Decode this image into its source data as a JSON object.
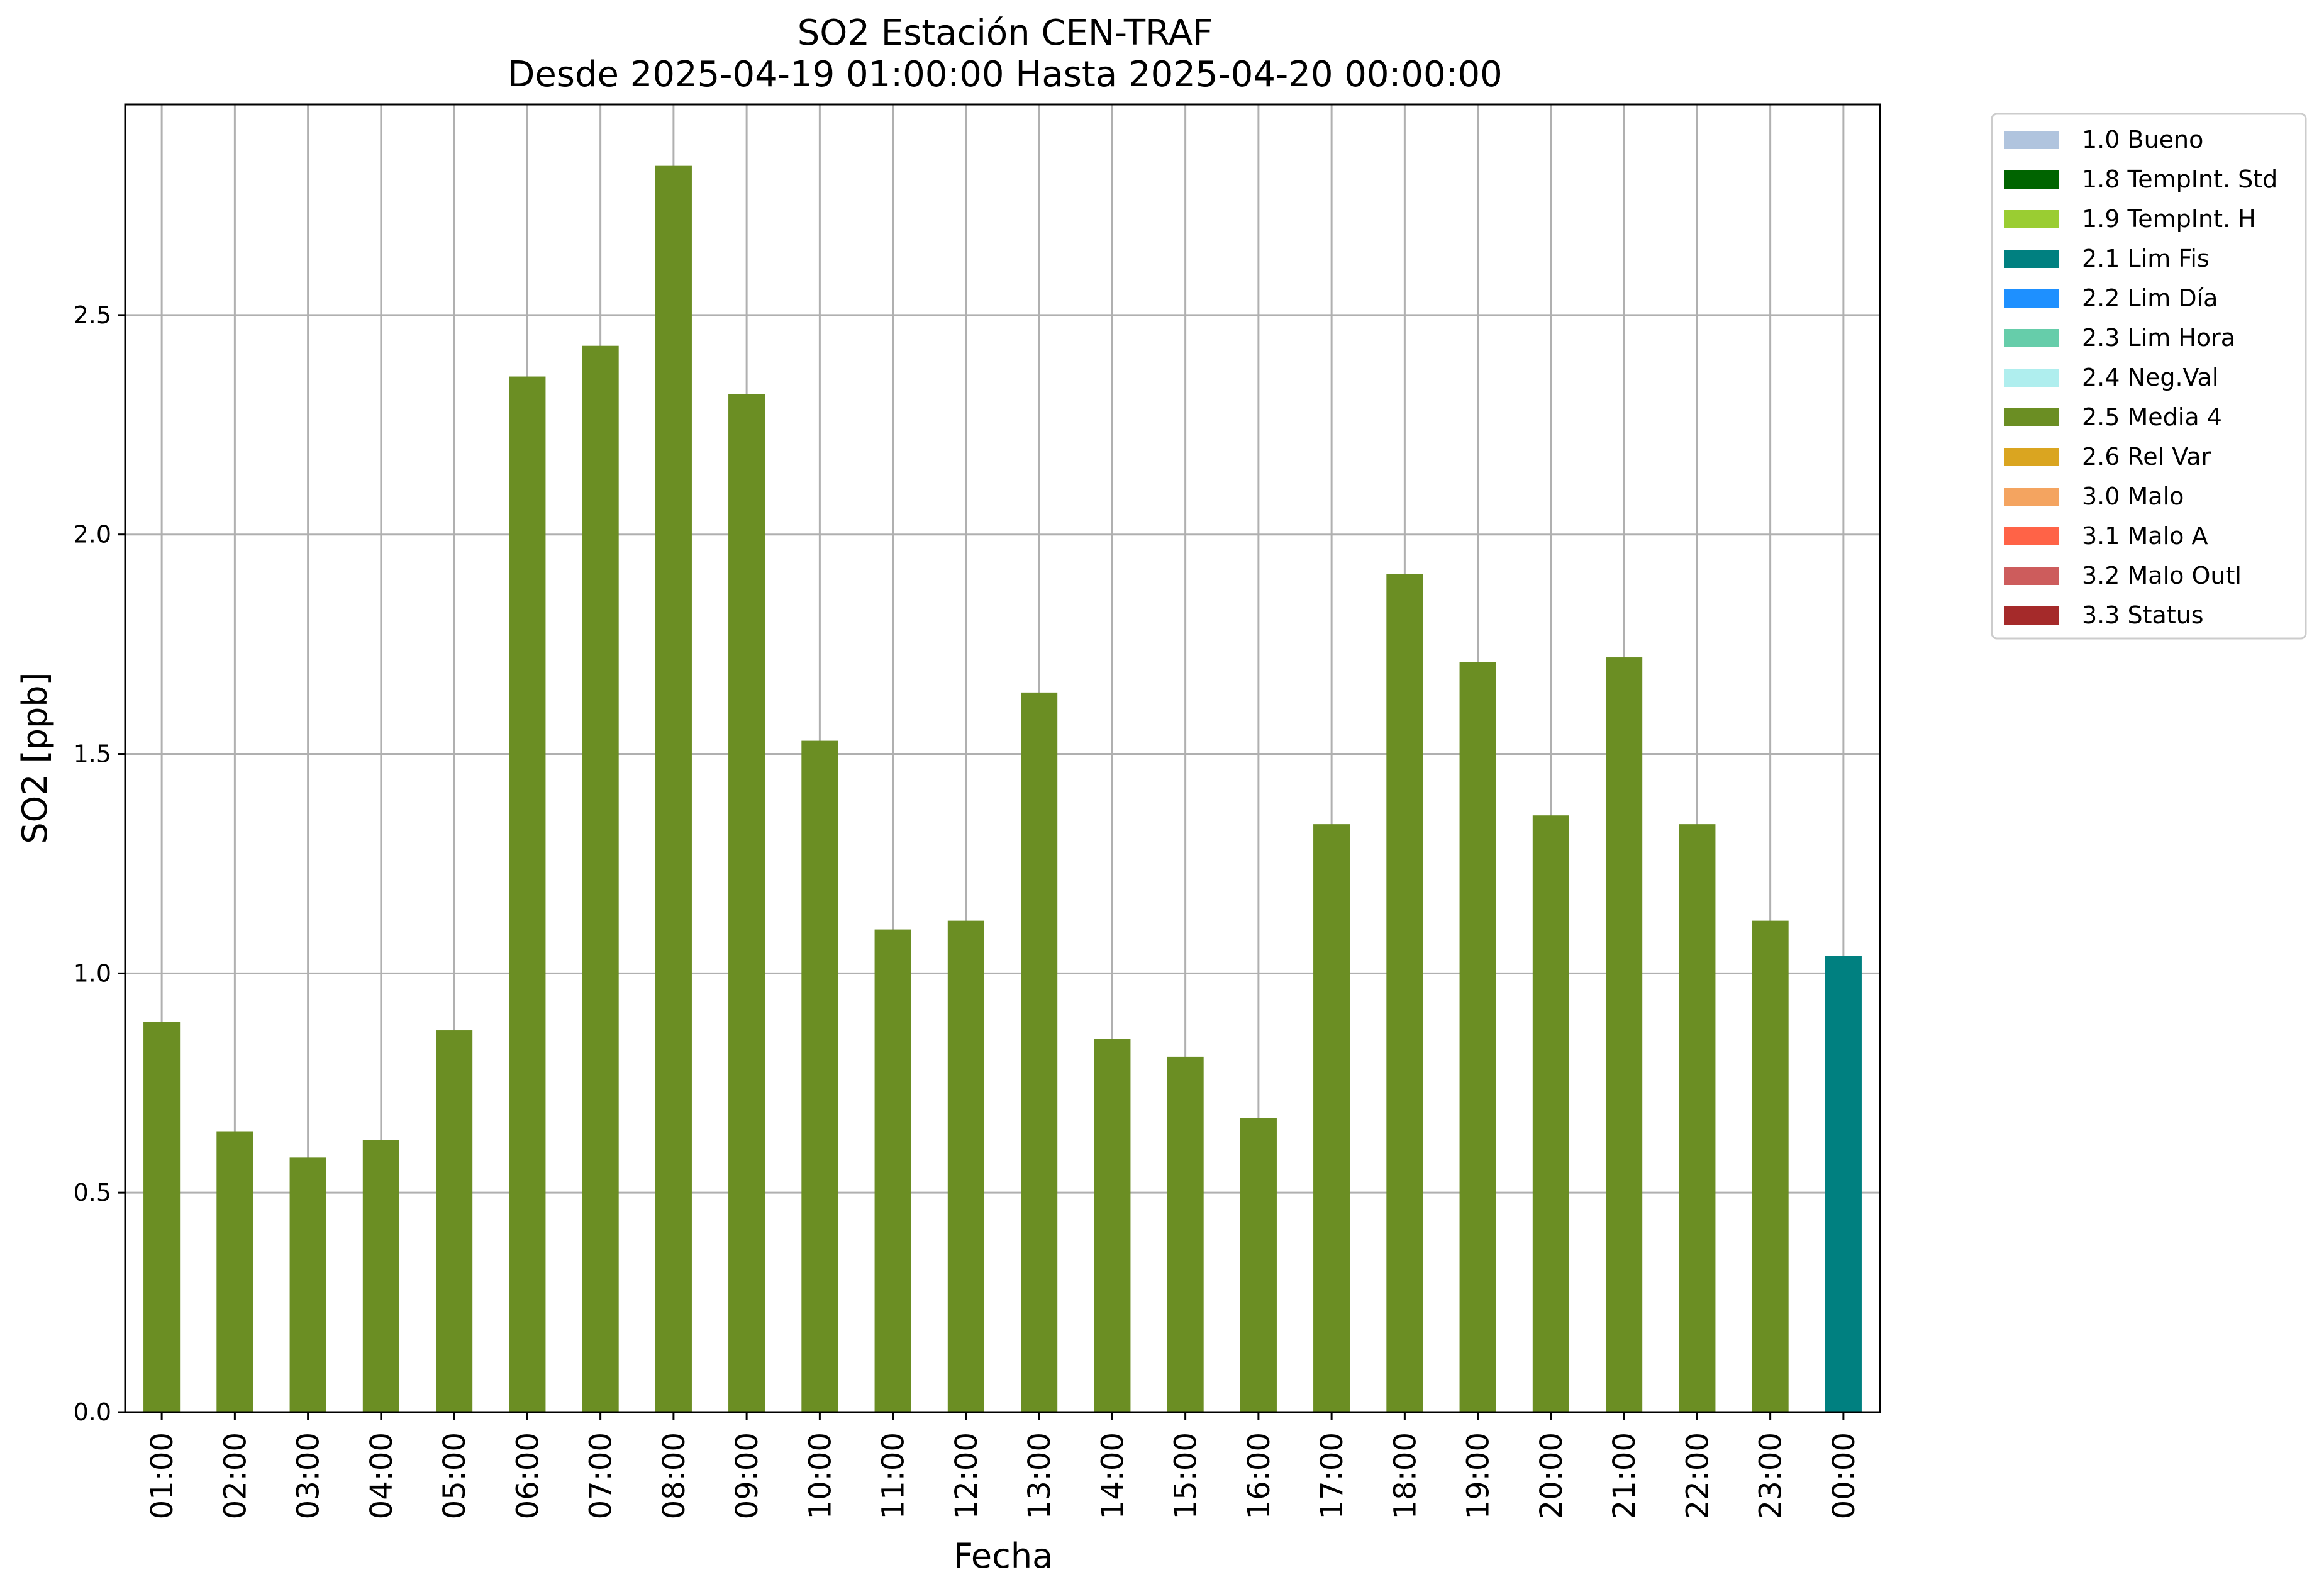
{
  "chart_data": {
    "type": "bar",
    "title": "SO2 Estación CEN-TRAF",
    "subtitle": "Desde 2025-04-19 01:00:00 Hasta 2025-04-20 00:00:00",
    "xlabel": "Fecha",
    "ylabel": "SO2 [ppb]",
    "ylim": [
      0,
      2.98
    ],
    "yticks": [
      "0.0",
      "0.5",
      "1.0",
      "1.5",
      "2.0",
      "2.5"
    ],
    "grid": true,
    "legend_position": "outside-top-right",
    "categories": [
      "01:00",
      "02:00",
      "03:00",
      "04:00",
      "05:00",
      "06:00",
      "07:00",
      "08:00",
      "09:00",
      "10:00",
      "11:00",
      "12:00",
      "13:00",
      "14:00",
      "15:00",
      "16:00",
      "17:00",
      "18:00",
      "19:00",
      "20:00",
      "21:00",
      "22:00",
      "23:00",
      "00:00"
    ],
    "values": [
      0.89,
      0.64,
      0.58,
      0.62,
      0.87,
      2.36,
      2.43,
      2.84,
      2.32,
      1.53,
      1.1,
      1.12,
      1.64,
      0.85,
      0.81,
      0.67,
      1.34,
      1.91,
      1.71,
      1.36,
      1.72,
      1.34,
      1.12,
      1.04
    ],
    "flags": [
      "2.5 Media 4",
      "2.5 Media 4",
      "2.5 Media 4",
      "2.5 Media 4",
      "2.5 Media 4",
      "2.5 Media 4",
      "2.5 Media 4",
      "2.5 Media 4",
      "2.5 Media 4",
      "2.5 Media 4",
      "2.5 Media 4",
      "2.5 Media 4",
      "2.5 Media 4",
      "2.5 Media 4",
      "2.5 Media 4",
      "2.5 Media 4",
      "2.5 Media 4",
      "2.5 Media 4",
      "2.5 Media 4",
      "2.5 Media 4",
      "2.5 Media 4",
      "2.5 Media 4",
      "2.5 Media 4",
      "2.1 Lim Fis"
    ],
    "legend": [
      {
        "label": "1.0 Bueno",
        "color": "#b0c4de"
      },
      {
        "label": "1.8 TempInt. Std",
        "color": "#006400"
      },
      {
        "label": "1.9 TempInt. H",
        "color": "#9acd32"
      },
      {
        "label": "2.1 Lim Fis",
        "color": "#008080"
      },
      {
        "label": "2.2 Lim Día",
        "color": "#1e90ff"
      },
      {
        "label": "2.3 Lim Hora",
        "color": "#66cdaa"
      },
      {
        "label": "2.4 Neg.Val",
        "color": "#afeeee"
      },
      {
        "label": "2.5 Media 4",
        "color": "#6b8e23"
      },
      {
        "label": "2.6 Rel Var",
        "color": "#daa520"
      },
      {
        "label": "3.0 Malo",
        "color": "#f4a460"
      },
      {
        "label": "3.1 Malo A",
        "color": "#ff6347"
      },
      {
        "label": "3.2 Malo Outl",
        "color": "#cd5c5c"
      },
      {
        "label": "3.3 Status",
        "color": "#a52a2a"
      }
    ]
  }
}
